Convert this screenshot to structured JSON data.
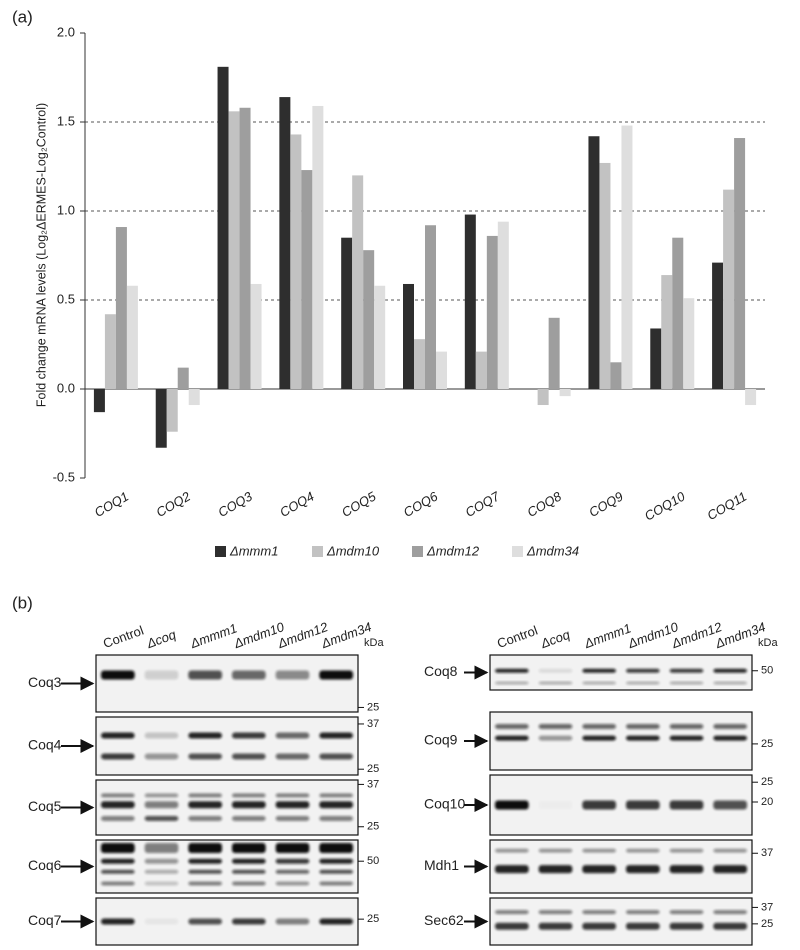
{
  "panel_labels": [
    "(a)",
    "(b)"
  ],
  "chart_data": {
    "type": "bar",
    "ylabel": "Fold change mRNA levels (Log₂ΔERMES-Log₂Control)",
    "categories": [
      "COQ1",
      "COQ2",
      "COQ3",
      "COQ4",
      "COQ5",
      "COQ6",
      "COQ7",
      "COQ8",
      "COQ9",
      "COQ10",
      "COQ11"
    ],
    "series": [
      {
        "name": "Δmmm1",
        "color": "#2e2e2e",
        "values": [
          -0.13,
          -0.33,
          1.81,
          1.64,
          0.85,
          0.59,
          0.98,
          0,
          1.42,
          0.34,
          0.71
        ]
      },
      {
        "name": "Δmdm10",
        "color": "#c2c2c2",
        "values": [
          0.42,
          -0.24,
          1.56,
          1.43,
          1.2,
          0.28,
          0.21,
          -0.09,
          1.27,
          0.64,
          1.12
        ]
      },
      {
        "name": "Δmdm12",
        "color": "#9e9e9e",
        "values": [
          0.91,
          0.12,
          1.58,
          1.23,
          0.78,
          0.92,
          0.86,
          0.4,
          0.15,
          0.85,
          1.41
        ]
      },
      {
        "name": "Δmdm34",
        "color": "#dedede",
        "values": [
          0.58,
          -0.09,
          0.59,
          1.59,
          0.58,
          0.21,
          0.94,
          -0.04,
          1.48,
          0.51,
          -0.09
        ]
      }
    ],
    "ylim": [
      -0.5,
      2.0
    ],
    "yticks": [
      {
        "value": -0.5,
        "label": "-0.5"
      },
      {
        "value": 0,
        "label": "0.0"
      },
      {
        "value": 0.5,
        "label": "0.5"
      },
      {
        "value": 1,
        "label": "1.0"
      },
      {
        "value": 1.5,
        "label": "1.5"
      },
      {
        "value": 2,
        "label": "2.0"
      }
    ],
    "grid": true
  },
  "blots": {
    "lanes": [
      "Control",
      "Δcoq",
      "Δmmm1",
      "Δmdm10",
      "Δmdm12",
      "Δmdm34"
    ],
    "unit": "kDa",
    "left": [
      {
        "label": "Coq3",
        "markers": [
          25
        ]
      },
      {
        "label": "Coq4",
        "markers": [
          37,
          25
        ]
      },
      {
        "label": "Coq5",
        "markers": [
          37,
          25
        ]
      },
      {
        "label": "Coq6",
        "markers": [
          50
        ]
      },
      {
        "label": "Coq7",
        "markers": [
          25
        ]
      }
    ],
    "right": [
      {
        "label": "Coq8",
        "markers": [
          50
        ]
      },
      {
        "label": "Coq9",
        "markers": [
          25
        ]
      },
      {
        "label": "Coq10",
        "markers": [
          25,
          20
        ]
      },
      {
        "label": "Mdh1",
        "markers": [
          37
        ]
      },
      {
        "label": "Sec62",
        "markers": [
          37,
          25
        ]
      }
    ]
  }
}
